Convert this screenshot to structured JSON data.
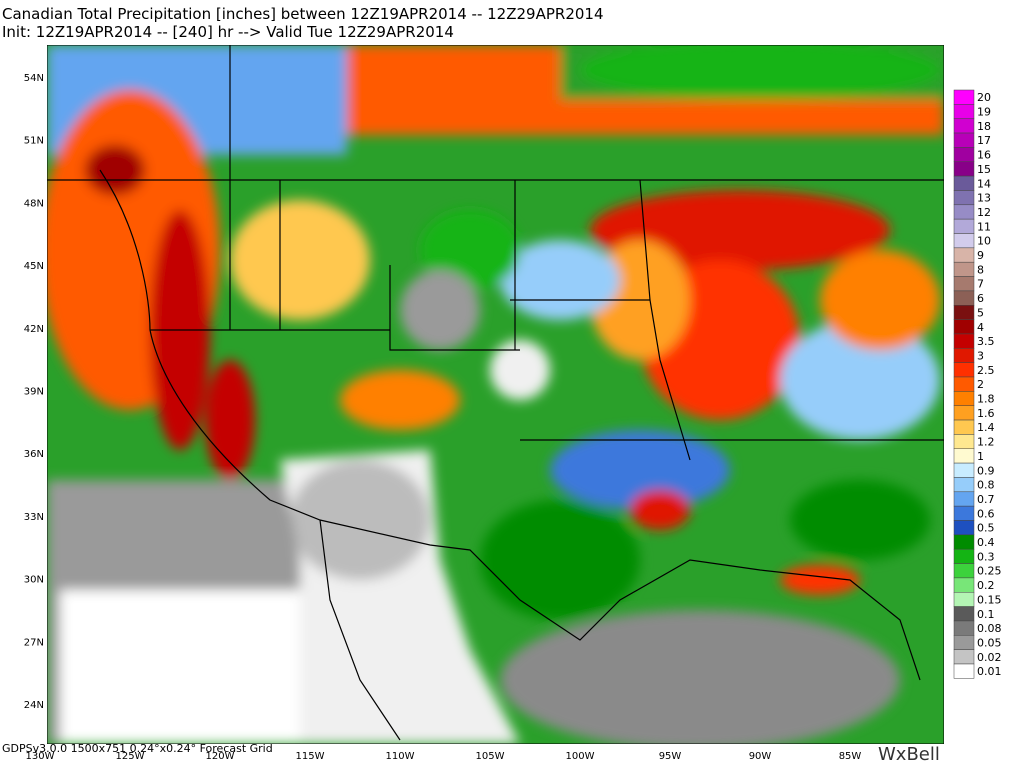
{
  "header": {
    "line1": "Canadian Total Precipitation [inches] between 12Z19APR2014 -- 12Z29APR2014",
    "line2": "Init: 12Z19APR2014 -- [240] hr --> Valid Tue 12Z29APR2014"
  },
  "latitude_labels": [
    "54N",
    "51N",
    "48N",
    "45N",
    "42N",
    "39N",
    "36N",
    "33N",
    "30N",
    "27N",
    "24N"
  ],
  "longitude_labels": [
    "130W",
    "125W",
    "120W",
    "115W",
    "110W",
    "105W",
    "100W",
    "95W",
    "90W",
    "85W"
  ],
  "color_scale": [
    {
      "label": "20",
      "color": "#ff00ff"
    },
    {
      "label": "19",
      "color": "#e800e8"
    },
    {
      "label": "18",
      "color": "#d000d0"
    },
    {
      "label": "17",
      "color": "#b800b8"
    },
    {
      "label": "16",
      "color": "#a000a0"
    },
    {
      "label": "15",
      "color": "#880088"
    },
    {
      "label": "14",
      "color": "#6a5a9a"
    },
    {
      "label": "13",
      "color": "#7f72b0"
    },
    {
      "label": "12",
      "color": "#978cc6"
    },
    {
      "label": "11",
      "color": "#b2a9d9"
    },
    {
      "label": "10",
      "color": "#d2ccec"
    },
    {
      "label": "9",
      "color": "#d8b4a8"
    },
    {
      "label": "8",
      "color": "#c0968a"
    },
    {
      "label": "7",
      "color": "#a67a6e"
    },
    {
      "label": "6",
      "color": "#8c6056"
    },
    {
      "label": "5",
      "color": "#7a1010"
    },
    {
      "label": "4",
      "color": "#a00000"
    },
    {
      "label": "3.5",
      "color": "#c40000"
    },
    {
      "label": "3",
      "color": "#e01800"
    },
    {
      "label": "2.5",
      "color": "#ff3000"
    },
    {
      "label": "2",
      "color": "#ff5a00"
    },
    {
      "label": "1.8",
      "color": "#ff8000"
    },
    {
      "label": "1.6",
      "color": "#ffa020"
    },
    {
      "label": "1.4",
      "color": "#ffc850"
    },
    {
      "label": "1.2",
      "color": "#ffe890"
    },
    {
      "label": "1",
      "color": "#fffad0"
    },
    {
      "label": "0.9",
      "color": "#c8ecff"
    },
    {
      "label": "0.8",
      "color": "#96cdfa"
    },
    {
      "label": "0.7",
      "color": "#64a5f0"
    },
    {
      "label": "0.6",
      "color": "#3c78dc"
    },
    {
      "label": "0.5",
      "color": "#1e50c0"
    },
    {
      "label": "0.4",
      "color": "#008c00"
    },
    {
      "label": "0.3",
      "color": "#14b414"
    },
    {
      "label": "0.25",
      "color": "#3cd23c"
    },
    {
      "label": "0.2",
      "color": "#78e678"
    },
    {
      "label": "0.15",
      "color": "#b4f5b4"
    },
    {
      "label": "0.1",
      "color": "#5a5a5a"
    },
    {
      "label": "0.08",
      "color": "#7a7a7a"
    },
    {
      "label": "0.05",
      "color": "#9a9a9a"
    },
    {
      "label": "0.02",
      "color": "#c4c4c4"
    },
    {
      "label": "0.01",
      "color": "#ffffff"
    }
  ],
  "footer": {
    "grid_info": "GDPSv3.0.0 1500x751 0.24°x0.24° Forecast Grid",
    "logo": "WxBell"
  }
}
